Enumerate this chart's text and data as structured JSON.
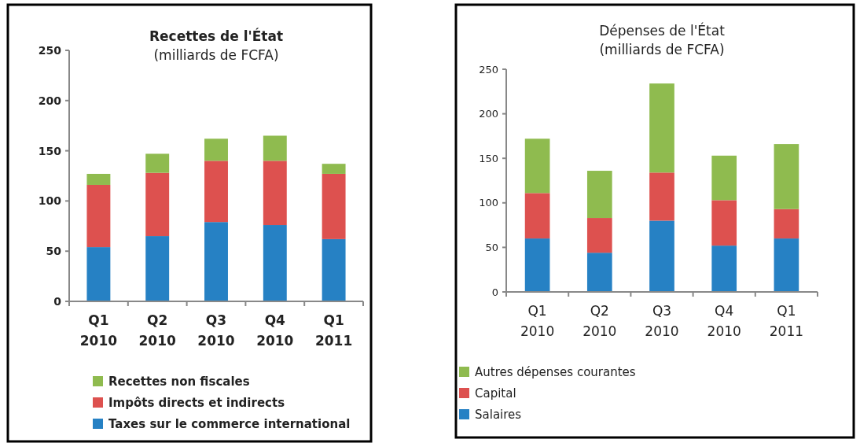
{
  "chart_data": [
    {
      "type": "bar",
      "title": "Recettes de l'État",
      "subtitle": "(milliards de FCFA)",
      "categories": [
        "Q1 2010",
        "Q2 2010",
        "Q3 2010",
        "Q4 2010",
        "Q1 2011"
      ],
      "stacked": true,
      "ylim": [
        0,
        250
      ],
      "yticks": [
        0,
        50,
        100,
        150,
        200,
        250
      ],
      "grid": false,
      "legend": "bottom",
      "series": [
        {
          "name": "Taxes sur le commerce international",
          "color": "#2681c4",
          "values": [
            54,
            65,
            79,
            76,
            62
          ]
        },
        {
          "name": "Impôts directs et indirects",
          "color": "#dd514f",
          "values": [
            62,
            63,
            61,
            64,
            65
          ]
        },
        {
          "name": "Recettes non fiscales",
          "color": "#8fbb4f",
          "values": [
            11,
            19,
            22,
            25,
            10
          ]
        }
      ]
    },
    {
      "type": "bar",
      "title": "Dépenses de l'État",
      "subtitle": "(milliards de FCFA)",
      "categories": [
        "Q1 2010",
        "Q2 2010",
        "Q3 2010",
        "Q4 2010",
        "Q1 2011"
      ],
      "stacked": true,
      "ylim": [
        0,
        250
      ],
      "yticks": [
        0,
        50,
        100,
        150,
        200,
        250
      ],
      "grid": false,
      "legend": "bottom",
      "series": [
        {
          "name": "Salaires",
          "color": "#2681c4",
          "values": [
            60,
            44,
            80,
            52,
            60
          ]
        },
        {
          "name": "Capital",
          "color": "#dd514f",
          "values": [
            51,
            39,
            54,
            51,
            33
          ]
        },
        {
          "name": "Autres dépenses courantes",
          "color": "#8fbb4f",
          "values": [
            61,
            53,
            100,
            50,
            73
          ]
        }
      ]
    }
  ]
}
